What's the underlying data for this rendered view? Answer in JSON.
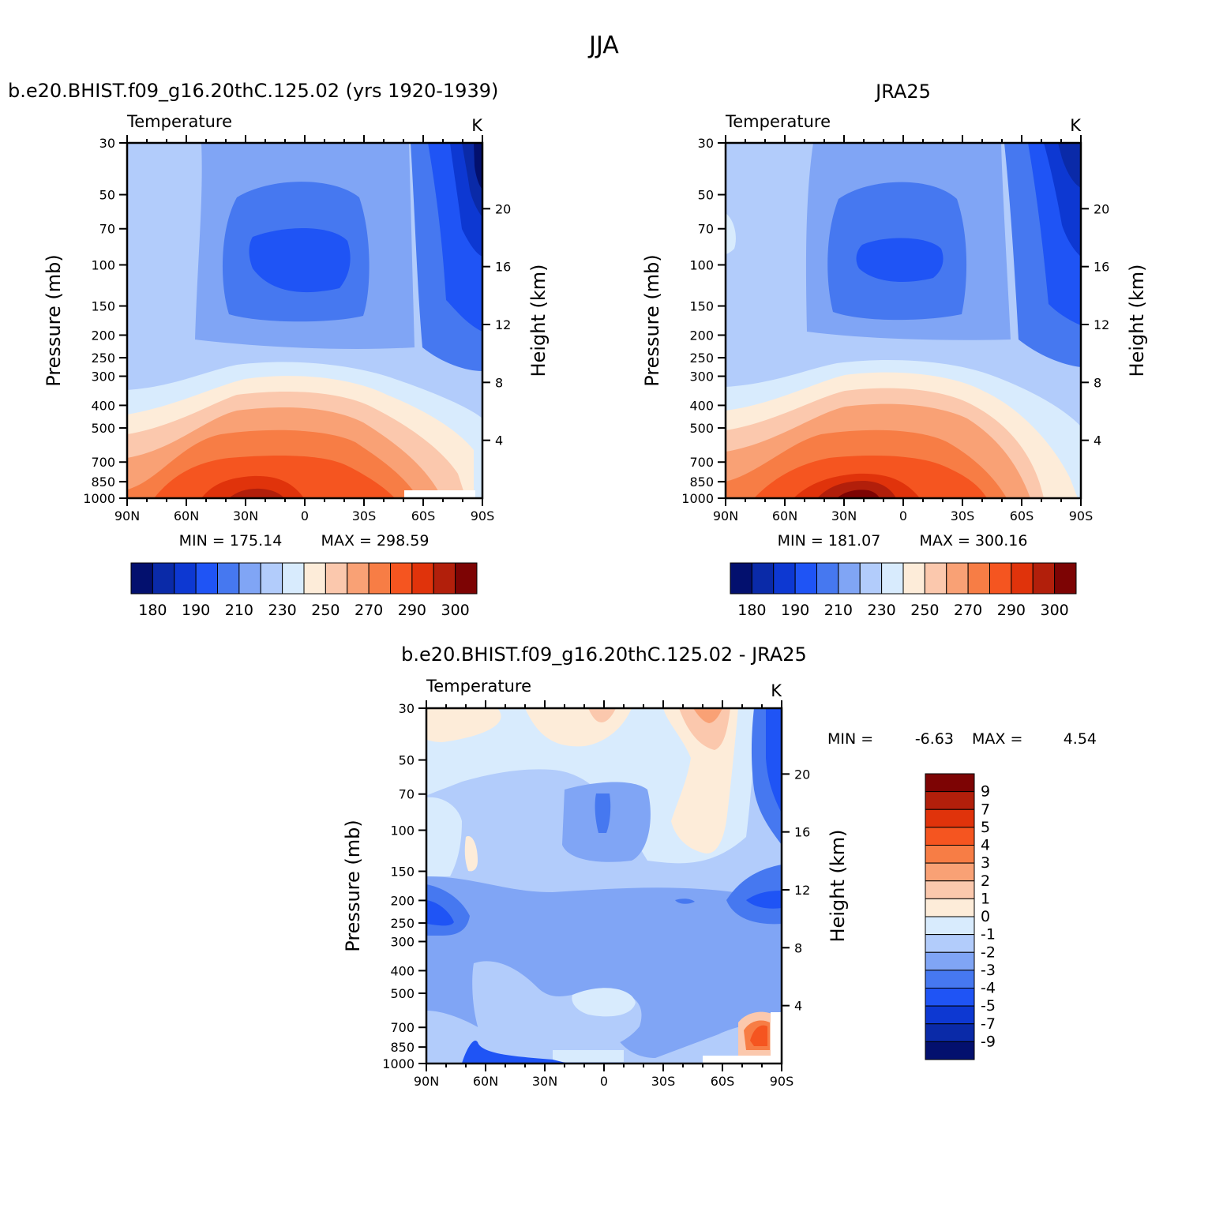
{
  "figure": {
    "title": "JJA"
  },
  "chart_data": [
    {
      "type": "heatmap",
      "title": "b.e20.BHIST.f09_g16.20thC.125.02 (yrs 1920-1939)",
      "variable": "Temperature",
      "units": "K",
      "xlabel": "",
      "ylabel": "Pressure (mb)",
      "ylabel_right": "Height (km)",
      "x_ticks": [
        "90N",
        "60N",
        "30N",
        "0",
        "30S",
        "60S",
        "90S"
      ],
      "x_range": [
        90,
        -90
      ],
      "y_ticks": [
        30,
        50,
        70,
        100,
        150,
        200,
        250,
        300,
        400,
        500,
        700,
        850,
        1000
      ],
      "y_range": [
        1000,
        30
      ],
      "y_scale": "log",
      "height_ticks": [
        4,
        8,
        12,
        16,
        20
      ],
      "min_text": "MIN = 175.14",
      "max_text": "MAX = 298.59",
      "min": 175.14,
      "max": 298.59,
      "colorbar": {
        "orientation": "horizontal",
        "labels": [
          "180",
          "190",
          "210",
          "230",
          "250",
          "270",
          "290",
          "300"
        ],
        "colors": [
          "#03106e",
          "#0a2aa8",
          "#0d38d2",
          "#1f54f5",
          "#4678f0",
          "#80a5f5",
          "#b2ccfb",
          "#d8ebfd",
          "#fdecd9",
          "#fbc8ad",
          "#f9a175",
          "#f77d45",
          "#f55520",
          "#e0330b",
          "#b21f0b",
          "#7d0404"
        ]
      }
    },
    {
      "type": "heatmap",
      "title": "JRA25",
      "variable": "Temperature",
      "units": "K",
      "xlabel": "",
      "ylabel": "Pressure (mb)",
      "ylabel_right": "Height (km)",
      "x_ticks": [
        "90N",
        "60N",
        "30N",
        "0",
        "30S",
        "60S",
        "90S"
      ],
      "x_range": [
        90,
        -90
      ],
      "y_ticks": [
        30,
        50,
        70,
        100,
        150,
        200,
        250,
        300,
        400,
        500,
        700,
        850,
        1000
      ],
      "y_range": [
        1000,
        30
      ],
      "y_scale": "log",
      "height_ticks": [
        4,
        8,
        12,
        16,
        20
      ],
      "min_text": "MIN = 181.07",
      "max_text": "MAX = 300.16",
      "min": 181.07,
      "max": 300.16,
      "colorbar": {
        "orientation": "horizontal",
        "labels": [
          "180",
          "190",
          "210",
          "230",
          "250",
          "270",
          "290",
          "300"
        ],
        "colors": [
          "#03106e",
          "#0a2aa8",
          "#0d38d2",
          "#1f54f5",
          "#4678f0",
          "#80a5f5",
          "#b2ccfb",
          "#d8ebfd",
          "#fdecd9",
          "#fbc8ad",
          "#f9a175",
          "#f77d45",
          "#f55520",
          "#e0330b",
          "#b21f0b",
          "#7d0404"
        ]
      }
    },
    {
      "type": "heatmap",
      "title": "b.e20.BHIST.f09_g16.20thC.125.02 - JRA25",
      "variable": "Temperature",
      "units": "K",
      "xlabel": "",
      "ylabel": "Pressure (mb)",
      "ylabel_right": "Height (km)",
      "x_ticks": [
        "90N",
        "60N",
        "30N",
        "0",
        "30S",
        "60S",
        "90S"
      ],
      "x_range": [
        90,
        -90
      ],
      "y_ticks": [
        30,
        50,
        70,
        100,
        150,
        200,
        250,
        300,
        400,
        500,
        700,
        850,
        1000
      ],
      "y_range": [
        1000,
        30
      ],
      "y_scale": "log",
      "height_ticks": [
        4,
        8,
        12,
        16,
        20
      ],
      "min_label": "MIN =",
      "min_value": "-6.63",
      "max_label": "MAX =",
      "max_value": "4.54",
      "min": -6.63,
      "max": 4.54,
      "colorbar": {
        "orientation": "vertical",
        "labels": [
          "9",
          "7",
          "5",
          "4",
          "3",
          "2",
          "1",
          "0",
          "-1",
          "-2",
          "-3",
          "-4",
          "-5",
          "-7",
          "-9"
        ],
        "colors": [
          "#7d0404",
          "#b21f0b",
          "#e0330b",
          "#f55520",
          "#f77d45",
          "#f9a175",
          "#fbc8ad",
          "#fdecd9",
          "#d8ebfd",
          "#b2ccfb",
          "#80a5f5",
          "#4678f0",
          "#1f54f5",
          "#0d38d2",
          "#0a2aa8",
          "#03106e"
        ]
      }
    }
  ]
}
